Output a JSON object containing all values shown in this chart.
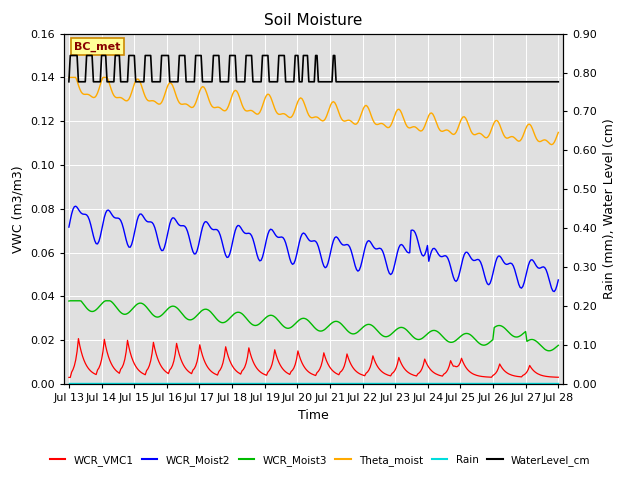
{
  "title": "Soil Moisture",
  "xlabel": "Time",
  "ylabel_left": "VWC (m3/m3)",
  "ylabel_right": "Rain (mm), Water Level (cm)",
  "ylim_left": [
    0.0,
    0.16
  ],
  "ylim_right": [
    0.0,
    0.9
  ],
  "yticks_left": [
    0.0,
    0.02,
    0.04,
    0.06,
    0.08,
    0.1,
    0.12,
    0.14,
    0.16
  ],
  "yticks_right": [
    0.0,
    0.1,
    0.2,
    0.3,
    0.4,
    0.5,
    0.6,
    0.7,
    0.8,
    0.9
  ],
  "xstart_day": 13,
  "xend_day": 28,
  "xtick_labels": [
    "Jul 13",
    "Jul 14",
    "Jul 15",
    "Jul 16",
    "Jul 17",
    "Jul 18",
    "Jul 19",
    "Jul 20",
    "Jul 21",
    "Jul 22",
    "Jul 23",
    "Jul 24",
    "Jul 25",
    "Jul 26",
    "Jul 27",
    "Jul 28"
  ],
  "bg_color": "#e0e0e0",
  "legend_entries": [
    "WCR_VMC1",
    "WCR_Moist2",
    "WCR_Moist3",
    "Theta_moist",
    "Rain",
    "WaterLevel_cm"
  ],
  "legend_colors": [
    "#ff0000",
    "#0000ff",
    "#00bb00",
    "#ffaa00",
    "#00dddd",
    "#000000"
  ],
  "annotation_text": "BC_met",
  "annotation_bg": "#ffff99",
  "annotation_border": "#cc0000",
  "figsize": [
    6.4,
    4.8
  ],
  "dpi": 100
}
